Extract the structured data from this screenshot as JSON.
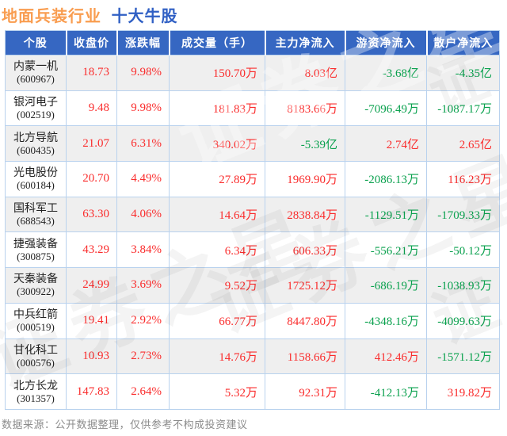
{
  "title": {
    "industry": "地面兵装行业",
    "suffix": "十大牛股"
  },
  "colors": {
    "up": "#fa2c2c",
    "down": "#0aa14e",
    "header_bg": "#3667c2",
    "border": "#b9d2ee",
    "row_alt": "#efefef",
    "title_industry": "#f99d50",
    "title_suffix": "#2f5fc4"
  },
  "table": {
    "headers": [
      "个股",
      "收盘价",
      "涨跌幅",
      "成交量（手）",
      "主力净流入",
      "游资净流入",
      "散户净流入"
    ],
    "rows": [
      {
        "name": "内蒙一机",
        "code": "(600967)",
        "close": "18.73",
        "change": "9.98%",
        "volume": "150.70万",
        "main": "8.03亿",
        "hot": "-3.68亿",
        "retail": "-4.35亿"
      },
      {
        "name": "银河电子",
        "code": "(002519)",
        "close": "9.48",
        "change": "9.98%",
        "volume": "181.83万",
        "main": "8183.66万",
        "hot": "-7096.49万",
        "retail": "-1087.17万"
      },
      {
        "name": "北方导航",
        "code": "(600435)",
        "close": "21.07",
        "change": "6.31%",
        "volume": "340.02万",
        "main": "-5.39亿",
        "hot": "2.74亿",
        "retail": "2.65亿"
      },
      {
        "name": "光电股份",
        "code": "(600184)",
        "close": "20.70",
        "change": "4.49%",
        "volume": "27.89万",
        "main": "1969.90万",
        "hot": "-2086.13万",
        "retail": "116.23万"
      },
      {
        "name": "国科军工",
        "code": "(688543)",
        "close": "63.30",
        "change": "4.06%",
        "volume": "14.64万",
        "main": "2838.84万",
        "hot": "-1129.51万",
        "retail": "-1709.33万"
      },
      {
        "name": "捷强装备",
        "code": "(300875)",
        "close": "43.29",
        "change": "3.84%",
        "volume": "6.34万",
        "main": "606.33万",
        "hot": "-556.21万",
        "retail": "-50.12万"
      },
      {
        "name": "天秦装备",
        "code": "(300922)",
        "close": "24.99",
        "change": "3.69%",
        "volume": "9.52万",
        "main": "1725.12万",
        "hot": "-686.19万",
        "retail": "-1038.93万"
      },
      {
        "name": "中兵红箭",
        "code": "(000519)",
        "close": "19.41",
        "change": "2.92%",
        "volume": "66.77万",
        "main": "8447.80万",
        "hot": "-4348.16万",
        "retail": "-4099.63万"
      },
      {
        "name": "甘化科工",
        "code": "(000576)",
        "close": "10.93",
        "change": "2.73%",
        "volume": "14.76万",
        "main": "1158.66万",
        "hot": "412.46万",
        "retail": "-1571.12万"
      },
      {
        "name": "北方长龙",
        "code": "(301357)",
        "close": "147.83",
        "change": "2.64%",
        "volume": "5.32万",
        "main": "92.31万",
        "hot": "-412.13万",
        "retail": "319.82万"
      }
    ]
  },
  "footer": {
    "note": "数据来源：公开数据整理，仅供参考不构成投资建议"
  },
  "watermark": {
    "text": "证券之星",
    "short": "证"
  }
}
